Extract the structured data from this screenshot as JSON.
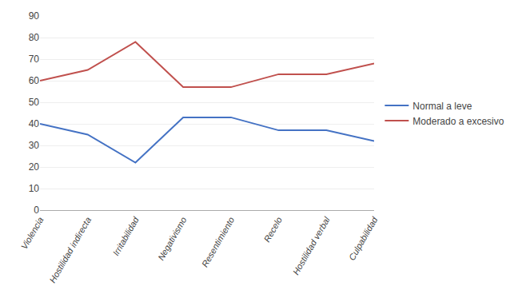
{
  "chart_data": {
    "type": "line",
    "categories": [
      "Violencia",
      "Hostilidad indirecta",
      "Irritabilidad",
      "Negativismo",
      "Resentimiento",
      "Recelo",
      "Hostilidad verbal",
      "Culpabilidad"
    ],
    "series": [
      {
        "name": "Normal a leve",
        "color": "#4472C4",
        "values": [
          40,
          35,
          22,
          43,
          43,
          37,
          37,
          32
        ]
      },
      {
        "name": "Moderado a excesivo",
        "color": "#C0504D",
        "values": [
          60,
          65,
          78,
          57,
          57,
          63,
          63,
          68
        ]
      }
    ],
    "ylim": [
      0,
      90
    ],
    "yticks": [
      0,
      10,
      20,
      30,
      40,
      50,
      60,
      70,
      80,
      90
    ],
    "grid": true,
    "legend": "right"
  }
}
